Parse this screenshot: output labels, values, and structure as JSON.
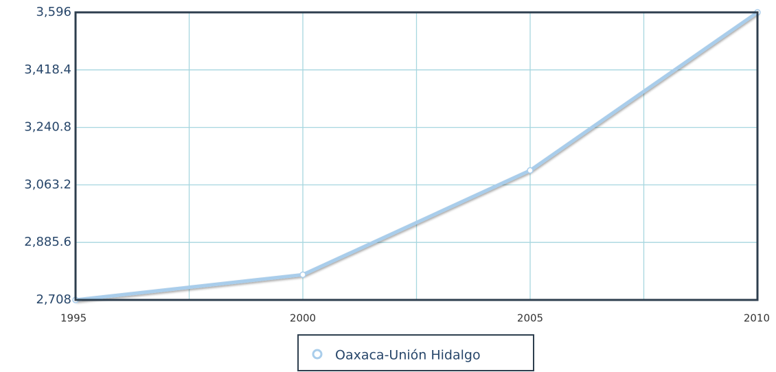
{
  "chart_data": {
    "type": "line",
    "x": [
      1995,
      2000,
      2005,
      2010
    ],
    "series": [
      {
        "name": "Oaxaca-Unión Hidalgo",
        "color": "#a9cdeb",
        "values": [
          2708,
          2786,
          3108,
          3596
        ]
      }
    ],
    "xlim": [
      1995,
      2010
    ],
    "xticks": [
      1995,
      2000,
      2005,
      2010
    ],
    "ylim": [
      2708,
      3596
    ],
    "yticks": [
      {
        "value": 2708,
        "label": "2,708"
      },
      {
        "value": 2885.6,
        "label": "2,885.6"
      },
      {
        "value": 3063.2,
        "label": "3,063.2"
      },
      {
        "value": 3240.8,
        "label": "3,240.8"
      },
      {
        "value": 3418.4,
        "label": "3,418.4"
      },
      {
        "value": 3596,
        "label": "3,596"
      }
    ],
    "grid": true,
    "legend": "bottom"
  }
}
